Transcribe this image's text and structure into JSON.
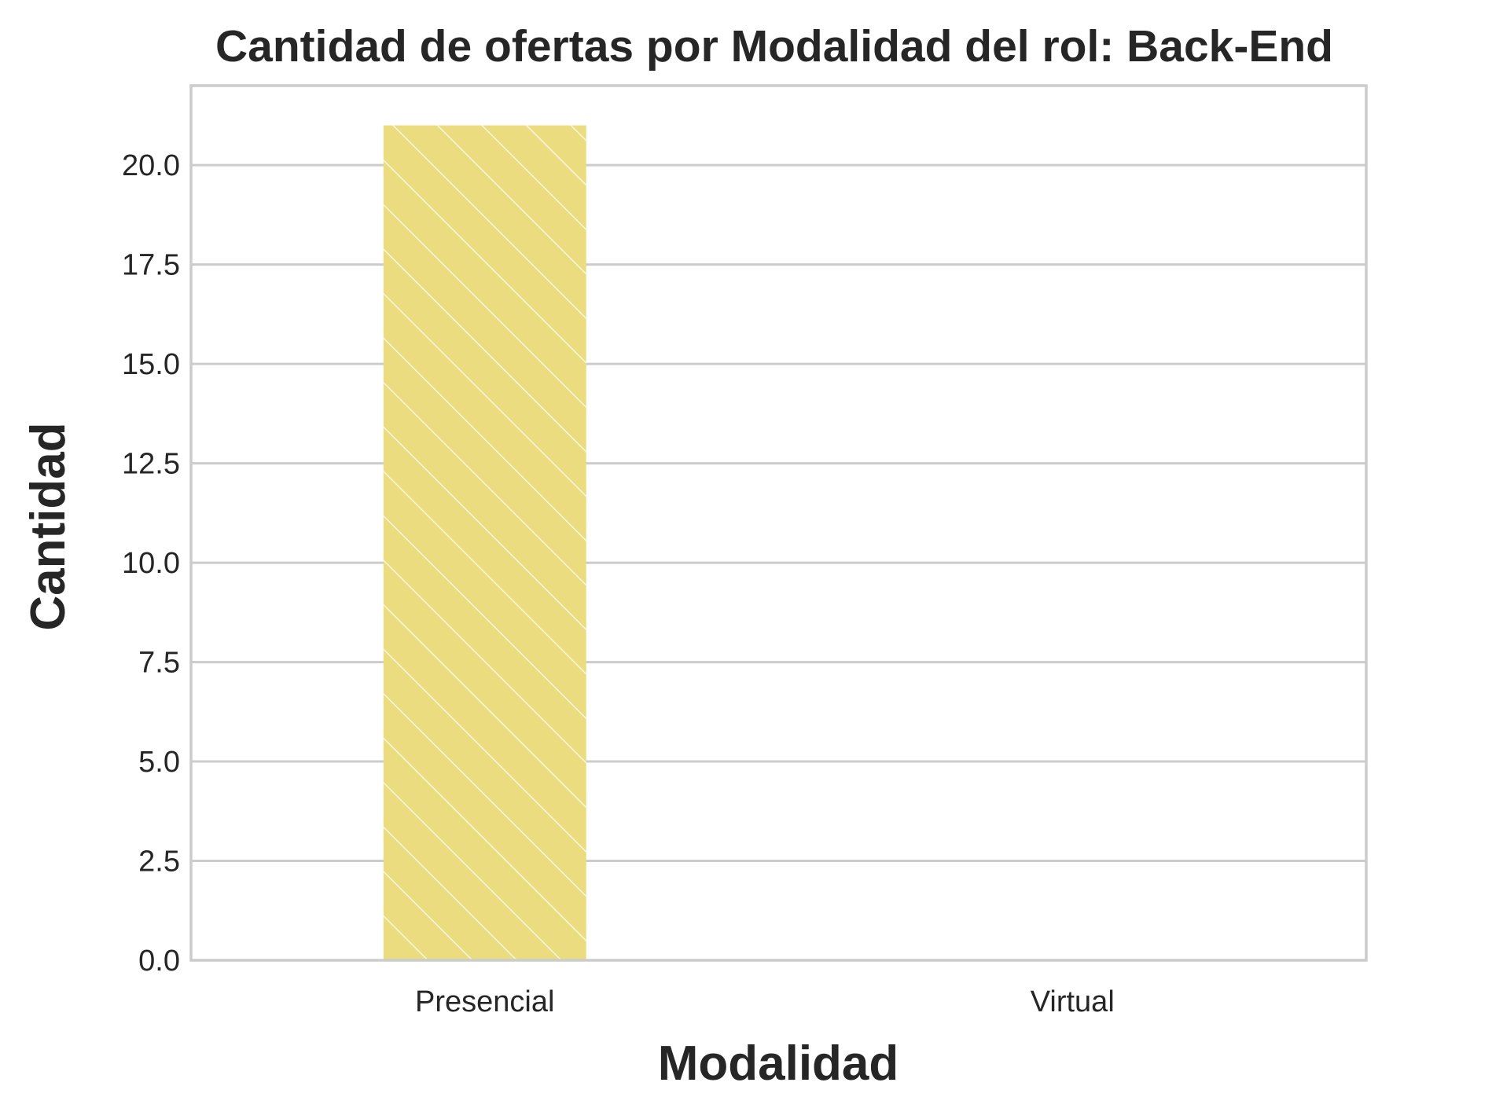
{
  "chart_data": {
    "type": "bar",
    "title": "Cantidad de ofertas por Modalidad del rol: Back-End",
    "xlabel": "Modalidad",
    "ylabel": "Cantidad",
    "categories": [
      "Presencial",
      "Virtual"
    ],
    "values": [
      21,
      0
    ],
    "ylim": [
      0,
      22
    ],
    "yticks": [
      "0.0",
      "2.5",
      "5.0",
      "7.5",
      "10.0",
      "12.5",
      "15.0",
      "17.5",
      "20.0"
    ],
    "grid": true,
    "bar_color": "#eadc7f",
    "hatch": "diagonal",
    "legend": "none"
  }
}
